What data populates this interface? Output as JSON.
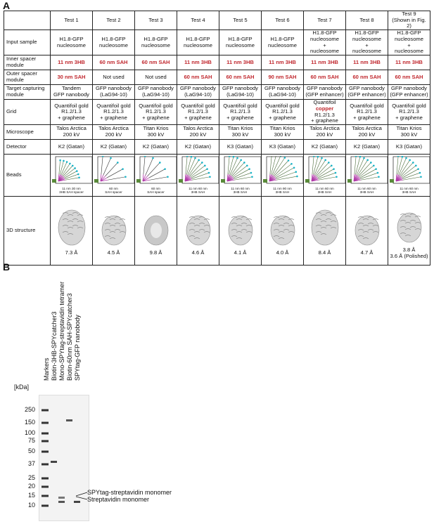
{
  "panel_a": {
    "letter": "A",
    "columns": [
      "Test 1",
      "Test 2",
      "Test 3",
      "Test 4",
      "Test 5",
      "Test 6",
      "Test 7",
      "Test 8",
      "Test 9\n(Shown in Fig. 2)"
    ],
    "rows": {
      "input_sample": {
        "label": "Input sample",
        "values": [
          "H1.8-GFP\nnucleosome",
          "H1.8-GFP\nnucleosome",
          "H1.8-GFP\nnucleosome",
          "H1.8-GFP\nnucleosome",
          "H1.8-GFP\nnucleosome",
          "H1.8-GFP\nnucleosome",
          "H1.8-GFP\nnucleosome\n+\nnucleosome",
          "H1.8-GFP\nnucleosome\n+\nnucleosome",
          "H1.8-GFP\nnucleosome\n+\nnucleosome"
        ]
      },
      "inner_spacer": {
        "label": "Inner spacer\nmodule",
        "values": [
          "11 nm 3HB",
          "60 nm SAH",
          "60 nm SAH",
          "11 nm 3HB",
          "11 nm 3HB",
          "11 nm 3HB",
          "11 nm 3HB",
          "11 nm 3HB",
          "11 nm 3HB"
        ]
      },
      "outer_spacer": {
        "label": "Outer spacer\nmodule",
        "values": [
          "30 nm SAH",
          "Not used",
          "Not used",
          "60 nm SAH",
          "60 nm SAH",
          "90 nm SAH",
          "60 nm SAH",
          "60 nm SAH",
          "60 nm SAH"
        ]
      },
      "capture": {
        "label": "Target capturing\nmodule",
        "values": [
          "Tandem\nGFP nanobody",
          "GFP nanobody\n(LaG94-10)",
          "GFP nanobody\n(LaG94-10)",
          "GFP nanobody\n(LaG94-10)",
          "GFP nanobody\n(LaG94-10)",
          "GFP nanobody\n(LaG94-10)",
          "GFP nanobody\n(GFP enhancer)",
          "GFP nanobody\n(GFP enhancer)",
          "GFP nanobody\n(GFP enhancer)"
        ]
      },
      "grid": {
        "label": "Grid",
        "values": [
          "Quantifoil gold\nR1.2/1.3\n+ graphene",
          "Quantifoil gold\nR1.2/1.3\n+ graphene",
          "Quantifoil gold\nR1.2/1.3\n+ graphene",
          "Quantifoil gold\nR1.2/1.3\n+ graphene",
          "Quantifoil gold\nR1.2/1.3\n+ graphene",
          "Quantifoil gold\nR1.2/1.3\n+ graphene",
          "Quantifoil\ncopper\nR1.2/1.3\n+ graphene",
          "Quantifoil gold\nR1.2/1.3\n+ graphene",
          "Quantifoil gold\nR1.2/1.3\n+ graphene"
        ]
      },
      "microscope": {
        "label": "Microscope",
        "values": [
          "Talos Arctica\n200 kV",
          "Talos Arctica\n200 kV",
          "Titan Krios\n300 kV",
          "Talos Arctica\n200 kV",
          "Titan Krios\n300 kV",
          "Titan Krios\n300 kV",
          "Talos Arctica\n200 kV",
          "Talos Arctica\n200 kV",
          "Titan Krios\n300 kV"
        ]
      },
      "detector": {
        "label": "Detector",
        "values": [
          "K2 (Gatan)",
          "K2 (Gatan)",
          "K2 (Gatan)",
          "K2 (Gatan)",
          "K3 (Gatan)",
          "K3 (Gatan)",
          "K2 (Gatan)",
          "K2 (Gatan)",
          "K3 (Gatan)"
        ]
      },
      "beads": {
        "label": "Beads",
        "captions": [
          "11 nm 30 nm\n3HB SAH spacer",
          "60 nm\nSAH spacer",
          "60 nm\nSAH spacer",
          "11 nm 60 nm\n3HB SAH",
          "11 nm 60 nm\n3HB SAH",
          "11 nm 90 nm\n3HB SAH",
          "11 nm 60 nm\n3HB SAH",
          "11 nm 60 nm\n3HB SAH",
          "11 nm 60 nm\n3HB SAH"
        ]
      },
      "structure": {
        "label": "3D structure",
        "values": [
          "7.3 Å",
          "4.5 Å",
          "9.8 Å",
          "4.6 Å",
          "4.1 Å",
          "4.0 Å",
          "8.4 Å",
          "4.7 Å",
          "3.8 Å\n3.6 Å (Polished)"
        ]
      }
    },
    "copper_word": "copper",
    "colors": {
      "highlight": "#c0282e",
      "bead_magenta": "#b03aa8",
      "bead_cyan": "#18b4c8"
    }
  },
  "panel_b": {
    "letter": "B",
    "lanes": [
      "Markers",
      "Biotin-3HB-SPYcatcher3",
      "Mono-SPYtag-streptavidin tetramer",
      "Biotin-60nm SAH-SPYcatcher3",
      "SPYtag-GFP nanobody"
    ],
    "kda_label": "[kDa]",
    "markers_kda": [
      "250",
      "150",
      "100",
      "75",
      "50",
      "37",
      "25",
      "20",
      "15",
      "10"
    ],
    "band_labels": [
      "SPYtag-streptavidin monomer",
      "Streptavidin monomer"
    ]
  }
}
